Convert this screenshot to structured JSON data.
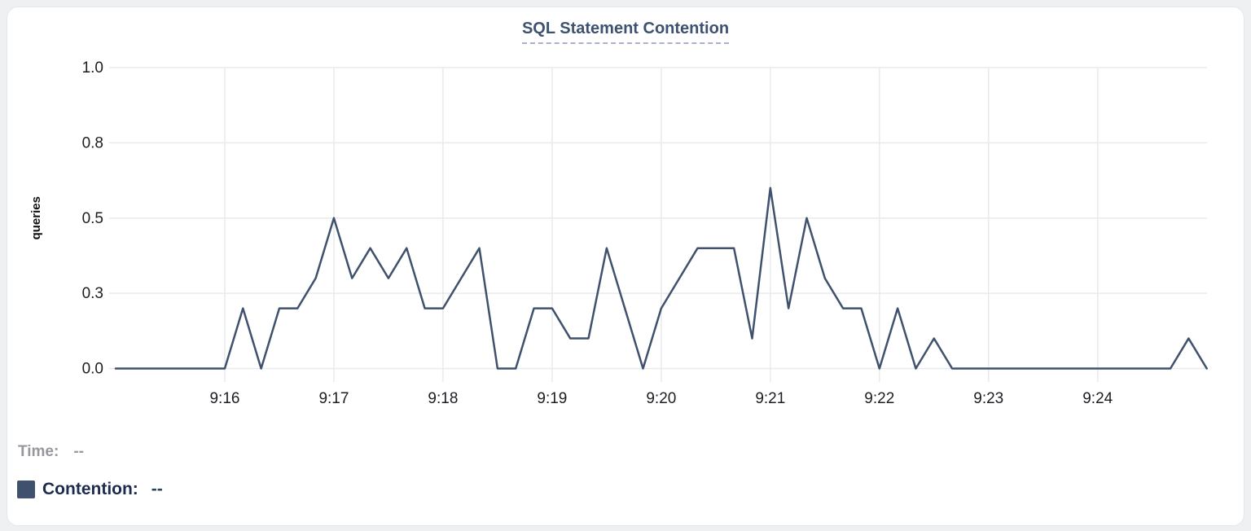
{
  "header": {
    "title": "SQL Statement Contention"
  },
  "legend": {
    "time_label": "Time:",
    "time_value": "--",
    "series_label": "Contention:",
    "series_value": "--",
    "swatch_color": "#3f516c"
  },
  "colors": {
    "line": "#3f516c",
    "grid": "#e8eaec",
    "tick_text": "#1b1d21",
    "title": "#3d5270",
    "axis_label": "#111111"
  },
  "chart_data": {
    "type": "line",
    "title": "SQL Statement Contention",
    "xlabel": "",
    "ylabel": "queries",
    "ylim": [
      0,
      1.0
    ],
    "grid": true,
    "legend_position": "bottom-left",
    "y_tick_values": [
      0,
      0.25,
      0.5,
      0.75,
      1.0
    ],
    "y_tick_labels": [
      "0.0",
      "0.3",
      "0.5",
      "0.8",
      "1.0"
    ],
    "x_tick_labels": [
      "9:16",
      "9:17",
      "9:18",
      "9:19",
      "9:20",
      "9:21",
      "9:22",
      "9:23",
      "9:24"
    ],
    "x_start": "9:15:00",
    "x_end": "9:25:00",
    "sample_interval_seconds": 10,
    "series": [
      {
        "name": "Contention",
        "color": "#3f516c",
        "values": [
          0,
          0,
          0,
          0,
          0,
          0,
          0,
          0.2,
          0,
          0.2,
          0.2,
          0.3,
          0.5,
          0.3,
          0.4,
          0.3,
          0.4,
          0.2,
          0.2,
          0.3,
          0.4,
          0,
          0,
          0.2,
          0.2,
          0.1,
          0.1,
          0.4,
          0.2,
          0,
          0.2,
          0.3,
          0.4,
          0.4,
          0.4,
          0.1,
          0.6,
          0.2,
          0.5,
          0.3,
          0.2,
          0.2,
          0,
          0.2,
          0,
          0.1,
          0,
          0,
          0,
          0,
          0,
          0,
          0,
          0,
          0,
          0,
          0,
          0,
          0,
          0.1,
          0
        ]
      }
    ]
  }
}
